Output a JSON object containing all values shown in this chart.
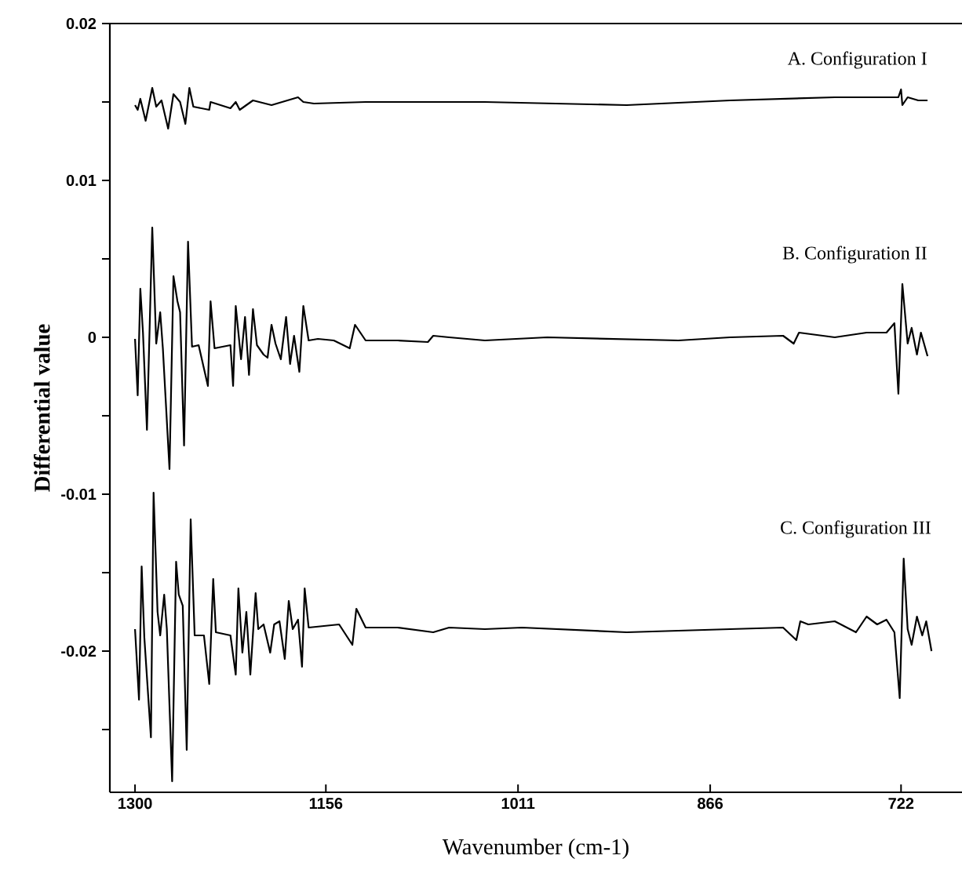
{
  "chart_data": {
    "type": "line",
    "xlabel": "Wavenumber (cm-1)",
    "ylabel": "Differential value",
    "xlim": [
      1319,
      676
    ],
    "ylim": [
      -0.029,
      0.02
    ],
    "xticks": [
      1300,
      1156,
      1011,
      866,
      722
    ],
    "yticks": [
      0.02,
      {
        "value": 0.015,
        "label": null
      },
      0.01,
      {
        "value": 0.005,
        "label": null
      },
      0,
      {
        "value": -0.005,
        "label": null
      },
      -0.01,
      {
        "value": -0.015,
        "label": null
      },
      -0.02,
      {
        "value": -0.025,
        "label": null
      }
    ],
    "marker": "none",
    "line_style": "solid",
    "series": [
      {
        "name": "A. Configuration I",
        "color": "#000000",
        "x": [
          1300,
          1298,
          1296,
          1292,
          1287,
          1284,
          1280,
          1275,
          1271,
          1266,
          1262,
          1259,
          1256,
          1244,
          1243,
          1228,
          1224,
          1221,
          1211,
          1197,
          1185,
          1177,
          1173,
          1165,
          1126,
          1087,
          1036,
          929,
          851,
          772,
          733,
          724,
          722,
          721,
          717,
          709,
          702
        ],
        "values": [
          0.0148,
          0.0145,
          0.0152,
          0.0138,
          0.0159,
          0.0147,
          0.0151,
          0.0133,
          0.0155,
          0.015,
          0.0136,
          0.0159,
          0.0147,
          0.0145,
          0.015,
          0.0146,
          0.015,
          0.0145,
          0.0151,
          0.0148,
          0.0151,
          0.0153,
          0.015,
          0.0149,
          0.015,
          0.015,
          0.015,
          0.0148,
          0.0151,
          0.0153,
          0.0153,
          0.0153,
          0.0158,
          0.0148,
          0.0153,
          0.0151,
          0.0151
        ]
      },
      {
        "name": "B. Configuration II",
        "color": "#000000",
        "x": [
          1300,
          1298,
          1296,
          1294,
          1291,
          1287,
          1284,
          1281,
          1279,
          1274,
          1271,
          1268,
          1266,
          1263,
          1260,
          1257,
          1252,
          1245,
          1243,
          1240,
          1228,
          1226,
          1224,
          1220,
          1217,
          1214,
          1211,
          1208,
          1203,
          1200,
          1197,
          1194,
          1190,
          1186,
          1183,
          1180,
          1176,
          1173,
          1169,
          1162,
          1150,
          1138,
          1134,
          1126,
          1102,
          1079,
          1075,
          1063,
          1036,
          989,
          890,
          851,
          811,
          803,
          799,
          772,
          748,
          733,
          727,
          724,
          721,
          717,
          714,
          710,
          707,
          702
        ],
        "values": [
          -0.0001,
          -0.0037,
          0.0031,
          0.0003,
          -0.0059,
          0.007,
          -0.0004,
          0.0016,
          -0.0007,
          -0.0084,
          0.0039,
          0.0023,
          0.0016,
          -0.0069,
          0.0061,
          -0.0006,
          -0.0005,
          -0.0031,
          0.0023,
          -0.0007,
          -0.0005,
          -0.0031,
          0.002,
          -0.0014,
          0.0013,
          -0.0024,
          0.0018,
          -0.0005,
          -0.0011,
          -0.0013,
          0.0008,
          -0.0004,
          -0.0014,
          0.0013,
          -0.0017,
          0.0001,
          -0.0022,
          0.002,
          -0.0002,
          -0.0001,
          -0.0002,
          -0.0007,
          0.0008,
          -0.0002,
          -0.0002,
          -0.0003,
          0.0001,
          0.0,
          -0.0002,
          0.0,
          -0.0002,
          0.0,
          0.0001,
          -0.0004,
          0.0003,
          0.0,
          0.0003,
          0.0003,
          0.0009,
          -0.0036,
          0.0034,
          -0.0004,
          0.0006,
          -0.0011,
          0.0003,
          -0.0012
        ]
      },
      {
        "name": "C. Configuration III",
        "color": "#000000",
        "x": [
          1300,
          1297,
          1295,
          1293,
          1288,
          1286,
          1283,
          1281,
          1278,
          1276,
          1272,
          1269,
          1267,
          1264,
          1261,
          1258,
          1255,
          1248,
          1244,
          1241,
          1239,
          1228,
          1224,
          1222,
          1219,
          1216,
          1213,
          1209,
          1207,
          1203,
          1198,
          1195,
          1191,
          1187,
          1184,
          1181,
          1177,
          1174,
          1172,
          1169,
          1146,
          1136,
          1133,
          1126,
          1102,
          1075,
          1063,
          1036,
          1008,
          929,
          851,
          811,
          801,
          798,
          792,
          772,
          756,
          748,
          740,
          733,
          727,
          723,
          720,
          717,
          714,
          710,
          706,
          703,
          699
        ],
        "values": [
          -0.0186,
          -0.0231,
          -0.0146,
          -0.0191,
          -0.0255,
          -0.0099,
          -0.0175,
          -0.019,
          -0.0164,
          -0.0186,
          -0.0283,
          -0.0143,
          -0.0164,
          -0.0171,
          -0.0263,
          -0.0116,
          -0.019,
          -0.019,
          -0.0221,
          -0.0154,
          -0.0188,
          -0.019,
          -0.0215,
          -0.016,
          -0.0201,
          -0.0175,
          -0.0215,
          -0.0163,
          -0.0186,
          -0.0183,
          -0.0201,
          -0.0183,
          -0.0181,
          -0.0205,
          -0.0168,
          -0.0186,
          -0.018,
          -0.021,
          -0.016,
          -0.0185,
          -0.0183,
          -0.0196,
          -0.0173,
          -0.0185,
          -0.0185,
          -0.0188,
          -0.0185,
          -0.0186,
          -0.0185,
          -0.0188,
          -0.0186,
          -0.0185,
          -0.0193,
          -0.0181,
          -0.0183,
          -0.0181,
          -0.0188,
          -0.0178,
          -0.0183,
          -0.018,
          -0.0188,
          -0.023,
          -0.0141,
          -0.0186,
          -0.0196,
          -0.0178,
          -0.019,
          -0.0181,
          -0.02
        ]
      }
    ]
  }
}
